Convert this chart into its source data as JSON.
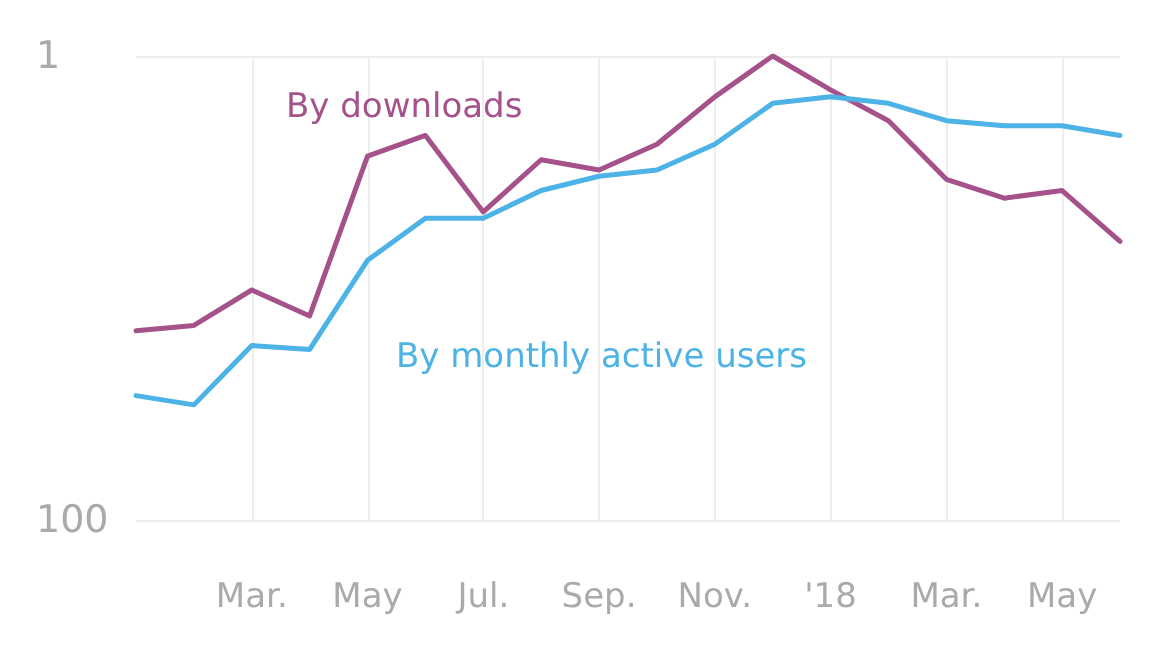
{
  "chart_data": {
    "type": "line",
    "categories": [
      null,
      null,
      "Mar.",
      null,
      "May",
      null,
      "Jul.",
      null,
      "Sep.",
      null,
      "Nov.",
      null,
      "'18",
      null,
      "Mar.",
      null,
      "May",
      null
    ],
    "series": [
      {
        "name": "By downloads",
        "color": "#a5528a",
        "values": [
          15.3,
          14.5,
          10.2,
          13.2,
          2.7,
          2.2,
          4.7,
          2.8,
          3.1,
          2.4,
          1.5,
          1.0,
          1.4,
          1.9,
          3.4,
          4.1,
          3.8,
          6.3
        ]
      },
      {
        "name": "By monthly active users",
        "color": "#4db3e6",
        "values": [
          29.1,
          31.9,
          17.7,
          18.4,
          7.6,
          5.0,
          5.0,
          3.8,
          3.3,
          3.1,
          2.4,
          1.6,
          1.5,
          1.6,
          1.9,
          2.0,
          2.0,
          2.2
        ]
      }
    ],
    "ylim": [
      100,
      1
    ],
    "yticks": [
      1,
      100
    ],
    "log": true,
    "grid": true,
    "legend": false,
    "marker": "none",
    "line_style": "solid"
  }
}
